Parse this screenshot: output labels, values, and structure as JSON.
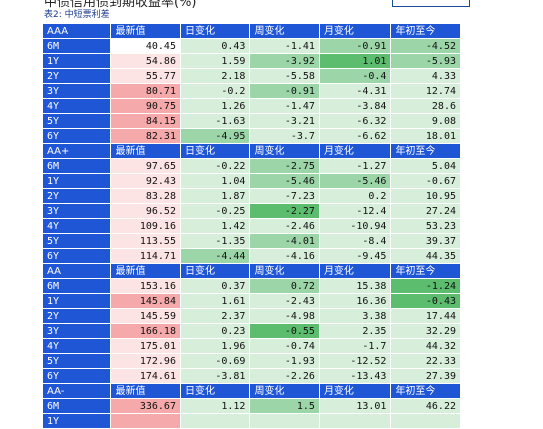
{
  "header": {
    "title": "中债信用债到期收益率(%)",
    "subtitle": "表2: 中短票利差"
  },
  "columns": [
    "最新值",
    "日变化",
    "周变化",
    "月变化",
    "年初至今"
  ],
  "colors": {
    "header_blue": "#1f56d6",
    "pink_light": "#fde4e4",
    "pink_medium": "#f5a9ab",
    "green_light": "#d7eedb",
    "green_medium": "#9cd6a8",
    "green_strong": "#5dbd6e"
  },
  "groups": [
    {
      "grade": "AAA",
      "rows": [
        {
          "tenor": "6M",
          "cells": [
            "40.45",
            "0.43",
            "-1.41",
            "-0.91",
            "-4.52"
          ],
          "colors": [
            "#ffffff",
            "#d7eedb",
            "#d7eedb",
            "#9cd6a8",
            "#9cd6a8"
          ]
        },
        {
          "tenor": "1Y",
          "cells": [
            "54.86",
            "1.59",
            "-3.92",
            "1.01",
            "-5.93"
          ],
          "colors": [
            "#fde4e4",
            "#d7eedb",
            "#9cd6a8",
            "#5dbd6e",
            "#9cd6a8"
          ]
        },
        {
          "tenor": "2Y",
          "cells": [
            "55.77",
            "2.18",
            "-5.58",
            "-0.4",
            "4.33"
          ],
          "colors": [
            "#fde4e4",
            "#d7eedb",
            "#d7eedb",
            "#9cd6a8",
            "#d7eedb"
          ]
        },
        {
          "tenor": "3Y",
          "cells": [
            "80.71",
            "-0.2",
            "-0.91",
            "-4.31",
            "12.74"
          ],
          "colors": [
            "#f5a9ab",
            "#d7eedb",
            "#9cd6a8",
            "#d7eedb",
            "#d7eedb"
          ]
        },
        {
          "tenor": "4Y",
          "cells": [
            "90.75",
            "1.26",
            "-1.47",
            "-3.84",
            "28.6"
          ],
          "colors": [
            "#f5a9ab",
            "#d7eedb",
            "#d7eedb",
            "#d7eedb",
            "#d7eedb"
          ]
        },
        {
          "tenor": "5Y",
          "cells": [
            "84.15",
            "-1.63",
            "-3.21",
            "-6.32",
            "9.08"
          ],
          "colors": [
            "#f5a9ab",
            "#d7eedb",
            "#d7eedb",
            "#d7eedb",
            "#d7eedb"
          ]
        },
        {
          "tenor": "6Y",
          "cells": [
            "82.31",
            "-4.95",
            "-3.7",
            "-6.62",
            "18.01"
          ],
          "colors": [
            "#f5a9ab",
            "#9cd6a8",
            "#d7eedb",
            "#d7eedb",
            "#d7eedb"
          ]
        }
      ]
    },
    {
      "grade": "AA+",
      "rows": [
        {
          "tenor": "6M",
          "cells": [
            "97.65",
            "-0.22",
            "-2.75",
            "-1.27",
            "5.04"
          ],
          "colors": [
            "#fde4e4",
            "#d7eedb",
            "#9cd6a8",
            "#d7eedb",
            "#d7eedb"
          ]
        },
        {
          "tenor": "1Y",
          "cells": [
            "92.43",
            "1.04",
            "-5.46",
            "-5.46",
            "-0.67"
          ],
          "colors": [
            "#fde4e4",
            "#d7eedb",
            "#9cd6a8",
            "#9cd6a8",
            "#d7eedb"
          ]
        },
        {
          "tenor": "2Y",
          "cells": [
            "83.28",
            "1.87",
            "-7.23",
            "0.2",
            "10.95"
          ],
          "colors": [
            "#fde4e4",
            "#d7eedb",
            "#d7eedb",
            "#d7eedb",
            "#d7eedb"
          ]
        },
        {
          "tenor": "3Y",
          "cells": [
            "96.52",
            "-0.25",
            "-2.27",
            "-12.4",
            "27.24"
          ],
          "colors": [
            "#fde4e4",
            "#d7eedb",
            "#5dbd6e",
            "#d7eedb",
            "#d7eedb"
          ]
        },
        {
          "tenor": "4Y",
          "cells": [
            "109.16",
            "1.42",
            "-2.46",
            "-10.94",
            "53.23"
          ],
          "colors": [
            "#fde4e4",
            "#d7eedb",
            "#d7eedb",
            "#d7eedb",
            "#d7eedb"
          ]
        },
        {
          "tenor": "5Y",
          "cells": [
            "113.55",
            "-1.35",
            "-4.01",
            "-8.4",
            "39.37"
          ],
          "colors": [
            "#fde4e4",
            "#d7eedb",
            "#9cd6a8",
            "#d7eedb",
            "#d7eedb"
          ]
        },
        {
          "tenor": "6Y",
          "cells": [
            "114.71",
            "-4.44",
            "-4.16",
            "-9.45",
            "44.35"
          ],
          "colors": [
            "#fde4e4",
            "#9cd6a8",
            "#d7eedb",
            "#d7eedb",
            "#d7eedb"
          ]
        }
      ]
    },
    {
      "grade": "AA",
      "rows": [
        {
          "tenor": "6M",
          "cells": [
            "153.16",
            "0.37",
            "0.72",
            "15.38",
            "-1.24"
          ],
          "colors": [
            "#fde4e4",
            "#d7eedb",
            "#9cd6a8",
            "#d7eedb",
            "#5dbd6e"
          ]
        },
        {
          "tenor": "1Y",
          "cells": [
            "145.84",
            "1.61",
            "-2.43",
            "16.36",
            "-0.43"
          ],
          "colors": [
            "#f5a9ab",
            "#d7eedb",
            "#d7eedb",
            "#d7eedb",
            "#5dbd6e"
          ]
        },
        {
          "tenor": "2Y",
          "cells": [
            "145.59",
            "2.37",
            "-4.98",
            "3.38",
            "17.44"
          ],
          "colors": [
            "#fde4e4",
            "#d7eedb",
            "#d7eedb",
            "#d7eedb",
            "#d7eedb"
          ]
        },
        {
          "tenor": "3Y",
          "cells": [
            "166.18",
            "0.23",
            "-0.55",
            "2.35",
            "32.29"
          ],
          "colors": [
            "#f5a9ab",
            "#d7eedb",
            "#5dbd6e",
            "#d7eedb",
            "#d7eedb"
          ]
        },
        {
          "tenor": "4Y",
          "cells": [
            "175.01",
            "1.96",
            "-0.74",
            "-1.7",
            "44.32"
          ],
          "colors": [
            "#fde4e4",
            "#d7eedb",
            "#d7eedb",
            "#d7eedb",
            "#d7eedb"
          ]
        },
        {
          "tenor": "5Y",
          "cells": [
            "172.96",
            "-0.69",
            "-1.93",
            "-12.52",
            "22.33"
          ],
          "colors": [
            "#fde4e4",
            "#d7eedb",
            "#d7eedb",
            "#d7eedb",
            "#d7eedb"
          ]
        },
        {
          "tenor": "6Y",
          "cells": [
            "174.61",
            "-3.81",
            "-2.26",
            "-13.43",
            "27.39"
          ],
          "colors": [
            "#fde4e4",
            "#d7eedb",
            "#d7eedb",
            "#d7eedb",
            "#d7eedb"
          ]
        }
      ]
    },
    {
      "grade": "AA-",
      "rows": [
        {
          "tenor": "6M",
          "cells": [
            "336.67",
            "1.12",
            "1.5",
            "13.01",
            "46.22"
          ],
          "colors": [
            "#f5a9ab",
            "#d7eedb",
            "#9cd6a8",
            "#d7eedb",
            "#d7eedb"
          ]
        },
        {
          "tenor": "1Y",
          "cells": [
            "",
            "",
            "",
            "",
            ""
          ],
          "colors": [
            "#f5a9ab",
            "#d7eedb",
            "#d7eedb",
            "#d7eedb",
            "#d7eedb"
          ]
        }
      ]
    }
  ]
}
